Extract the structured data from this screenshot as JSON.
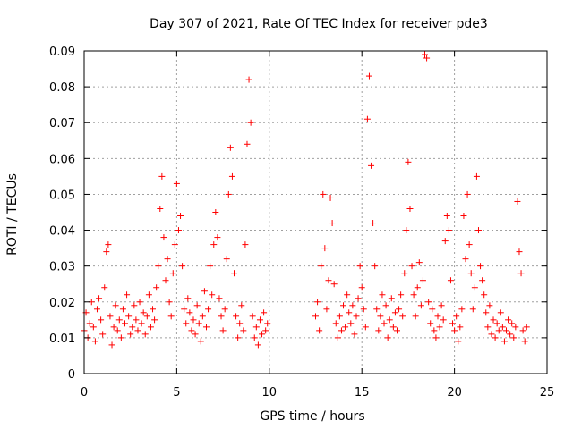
{
  "chart_data": {
    "type": "scatter",
    "title": "Day 307 of 2021, Rate Of TEC Index for receiver pde3",
    "xlabel": "GPS time / hours",
    "ylabel": "ROTI / TECUs",
    "xlim": [
      0,
      25
    ],
    "ylim": [
      0,
      0.09
    ],
    "xticks": [
      0,
      5,
      10,
      15,
      20,
      25
    ],
    "yticks": [
      0,
      0.01,
      0.02,
      0.03,
      0.04,
      0.05,
      0.06,
      0.07,
      0.08,
      0.09
    ],
    "xtick_labels": [
      "0",
      "5",
      "10",
      "15",
      "20",
      "25"
    ],
    "ytick_labels": [
      "0",
      "0.01",
      "0.02",
      "0.03",
      "0.04",
      "0.05",
      "0.06",
      "0.07",
      "0.08",
      "0.09"
    ],
    "grid": true,
    "marker": "+",
    "color": "#ff0000",
    "series": [
      {
        "points": [
          [
            0.0,
            0.012
          ],
          [
            0.1,
            0.017
          ],
          [
            0.2,
            0.01
          ],
          [
            0.3,
            0.014
          ],
          [
            0.4,
            0.02
          ],
          [
            0.5,
            0.013
          ],
          [
            0.6,
            0.009
          ],
          [
            0.7,
            0.018
          ],
          [
            0.8,
            0.021
          ],
          [
            0.9,
            0.015
          ],
          [
            1.0,
            0.011
          ],
          [
            1.1,
            0.024
          ],
          [
            1.2,
            0.034
          ],
          [
            1.3,
            0.036
          ],
          [
            1.4,
            0.016
          ],
          [
            1.5,
            0.008
          ],
          [
            1.6,
            0.013
          ],
          [
            1.7,
            0.019
          ],
          [
            1.8,
            0.012
          ],
          [
            1.9,
            0.015
          ],
          [
            2.0,
            0.01
          ],
          [
            2.1,
            0.018
          ],
          [
            2.2,
            0.014
          ],
          [
            2.3,
            0.022
          ],
          [
            2.4,
            0.016
          ],
          [
            2.5,
            0.011
          ],
          [
            2.6,
            0.013
          ],
          [
            2.7,
            0.019
          ],
          [
            2.8,
            0.015
          ],
          [
            2.9,
            0.012
          ],
          [
            3.0,
            0.02
          ],
          [
            3.1,
            0.014
          ],
          [
            3.2,
            0.017
          ],
          [
            3.3,
            0.011
          ],
          [
            3.4,
            0.016
          ],
          [
            3.5,
            0.022
          ],
          [
            3.6,
            0.013
          ],
          [
            3.7,
            0.018
          ],
          [
            3.8,
            0.015
          ],
          [
            3.9,
            0.024
          ],
          [
            4.0,
            0.03
          ],
          [
            4.1,
            0.046
          ],
          [
            4.2,
            0.055
          ],
          [
            4.3,
            0.038
          ],
          [
            4.4,
            0.026
          ],
          [
            4.5,
            0.032
          ],
          [
            4.6,
            0.02
          ],
          [
            4.7,
            0.016
          ],
          [
            4.8,
            0.028
          ],
          [
            4.9,
            0.036
          ],
          [
            5.0,
            0.053
          ],
          [
            5.1,
            0.04
          ],
          [
            5.2,
            0.044
          ],
          [
            5.3,
            0.03
          ],
          [
            5.4,
            0.018
          ],
          [
            5.5,
            0.014
          ],
          [
            5.6,
            0.021
          ],
          [
            5.7,
            0.017
          ],
          [
            5.8,
            0.012
          ],
          [
            5.9,
            0.015
          ],
          [
            6.0,
            0.011
          ],
          [
            6.1,
            0.019
          ],
          [
            6.2,
            0.014
          ],
          [
            6.3,
            0.009
          ],
          [
            6.4,
            0.016
          ],
          [
            6.5,
            0.023
          ],
          [
            6.6,
            0.013
          ],
          [
            6.7,
            0.018
          ],
          [
            6.8,
            0.03
          ],
          [
            6.9,
            0.022
          ],
          [
            7.0,
            0.036
          ],
          [
            7.1,
            0.045
          ],
          [
            7.2,
            0.038
          ],
          [
            7.3,
            0.021
          ],
          [
            7.4,
            0.016
          ],
          [
            7.5,
            0.012
          ],
          [
            7.6,
            0.018
          ],
          [
            7.7,
            0.032
          ],
          [
            7.8,
            0.05
          ],
          [
            7.9,
            0.063
          ],
          [
            8.0,
            0.055
          ],
          [
            8.1,
            0.028
          ],
          [
            8.2,
            0.016
          ],
          [
            8.3,
            0.01
          ],
          [
            8.4,
            0.014
          ],
          [
            8.5,
            0.019
          ],
          [
            8.6,
            0.012
          ],
          [
            8.7,
            0.036
          ],
          [
            8.8,
            0.064
          ],
          [
            8.9,
            0.082
          ],
          [
            9.0,
            0.07
          ],
          [
            9.1,
            0.016
          ],
          [
            9.2,
            0.01
          ],
          [
            9.3,
            0.013
          ],
          [
            9.4,
            0.008
          ],
          [
            9.5,
            0.015
          ],
          [
            9.6,
            0.011
          ],
          [
            9.7,
            0.017
          ],
          [
            9.8,
            0.012
          ],
          [
            9.9,
            0.014
          ],
          [
            12.5,
            0.016
          ],
          [
            12.6,
            0.02
          ],
          [
            12.7,
            0.012
          ],
          [
            12.8,
            0.03
          ],
          [
            12.9,
            0.05
          ],
          [
            13.0,
            0.035
          ],
          [
            13.1,
            0.018
          ],
          [
            13.2,
            0.026
          ],
          [
            13.3,
            0.049
          ],
          [
            13.4,
            0.042
          ],
          [
            13.5,
            0.025
          ],
          [
            13.6,
            0.014
          ],
          [
            13.7,
            0.01
          ],
          [
            13.8,
            0.016
          ],
          [
            13.9,
            0.012
          ],
          [
            14.0,
            0.019
          ],
          [
            14.1,
            0.013
          ],
          [
            14.2,
            0.022
          ],
          [
            14.3,
            0.017
          ],
          [
            14.4,
            0.014
          ],
          [
            14.5,
            0.019
          ],
          [
            14.6,
            0.011
          ],
          [
            14.7,
            0.016
          ],
          [
            14.8,
            0.021
          ],
          [
            14.9,
            0.03
          ],
          [
            15.0,
            0.024
          ],
          [
            15.1,
            0.018
          ],
          [
            15.2,
            0.013
          ],
          [
            15.3,
            0.071
          ],
          [
            15.4,
            0.083
          ],
          [
            15.5,
            0.058
          ],
          [
            15.6,
            0.042
          ],
          [
            15.7,
            0.03
          ],
          [
            15.8,
            0.018
          ],
          [
            15.9,
            0.012
          ],
          [
            16.0,
            0.016
          ],
          [
            16.1,
            0.022
          ],
          [
            16.2,
            0.014
          ],
          [
            16.3,
            0.019
          ],
          [
            16.4,
            0.01
          ],
          [
            16.5,
            0.015
          ],
          [
            16.6,
            0.021
          ],
          [
            16.7,
            0.013
          ],
          [
            16.8,
            0.017
          ],
          [
            16.9,
            0.012
          ],
          [
            17.0,
            0.018
          ],
          [
            17.1,
            0.022
          ],
          [
            17.2,
            0.016
          ],
          [
            17.3,
            0.028
          ],
          [
            17.4,
            0.04
          ],
          [
            17.5,
            0.059
          ],
          [
            17.6,
            0.046
          ],
          [
            17.7,
            0.03
          ],
          [
            17.8,
            0.022
          ],
          [
            17.9,
            0.016
          ],
          [
            18.0,
            0.024
          ],
          [
            18.1,
            0.031
          ],
          [
            18.2,
            0.019
          ],
          [
            18.3,
            0.026
          ],
          [
            18.4,
            0.089
          ],
          [
            18.5,
            0.088
          ],
          [
            18.6,
            0.02
          ],
          [
            18.7,
            0.014
          ],
          [
            18.8,
            0.018
          ],
          [
            18.9,
            0.012
          ],
          [
            19.0,
            0.01
          ],
          [
            19.1,
            0.016
          ],
          [
            19.2,
            0.013
          ],
          [
            19.3,
            0.019
          ],
          [
            19.4,
            0.015
          ],
          [
            19.5,
            0.037
          ],
          [
            19.6,
            0.044
          ],
          [
            19.7,
            0.04
          ],
          [
            19.8,
            0.026
          ],
          [
            19.9,
            0.014
          ],
          [
            20.0,
            0.012
          ],
          [
            20.1,
            0.016
          ],
          [
            20.2,
            0.009
          ],
          [
            20.3,
            0.013
          ],
          [
            20.4,
            0.018
          ],
          [
            20.5,
            0.044
          ],
          [
            20.6,
            0.032
          ],
          [
            20.7,
            0.05
          ],
          [
            20.8,
            0.036
          ],
          [
            20.9,
            0.028
          ],
          [
            21.0,
            0.018
          ],
          [
            21.1,
            0.024
          ],
          [
            21.2,
            0.055
          ],
          [
            21.3,
            0.04
          ],
          [
            21.4,
            0.03
          ],
          [
            21.5,
            0.026
          ],
          [
            21.6,
            0.022
          ],
          [
            21.7,
            0.017
          ],
          [
            21.8,
            0.013
          ],
          [
            21.9,
            0.019
          ],
          [
            22.0,
            0.011
          ],
          [
            22.1,
            0.015
          ],
          [
            22.2,
            0.01
          ],
          [
            22.3,
            0.014
          ],
          [
            22.4,
            0.012
          ],
          [
            22.5,
            0.017
          ],
          [
            22.6,
            0.013
          ],
          [
            22.7,
            0.009
          ],
          [
            22.8,
            0.012
          ],
          [
            22.9,
            0.015
          ],
          [
            23.0,
            0.011
          ],
          [
            23.1,
            0.014
          ],
          [
            23.2,
            0.01
          ],
          [
            23.3,
            0.013
          ],
          [
            23.4,
            0.048
          ],
          [
            23.5,
            0.034
          ],
          [
            23.6,
            0.028
          ],
          [
            23.7,
            0.012
          ],
          [
            23.8,
            0.009
          ],
          [
            23.9,
            0.013
          ]
        ]
      }
    ]
  }
}
